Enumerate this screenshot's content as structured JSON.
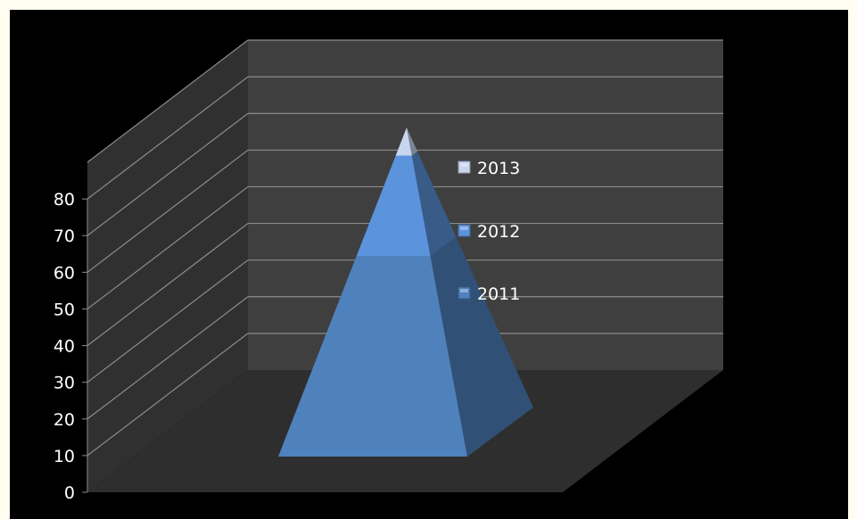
{
  "chart_data": {
    "type": "3d-stacked-pyramid",
    "categories": [
      ""
    ],
    "series": [
      {
        "name": "2011",
        "values": [
          50
        ],
        "color": "#4f81bd"
      },
      {
        "name": "2012",
        "values": [
          25
        ],
        "color": "#5b93dc"
      },
      {
        "name": "2013",
        "values": [
          7
        ],
        "color": "#c7d5ef"
      }
    ],
    "y_ticks": [
      "0",
      "10",
      "20",
      "30",
      "40",
      "50",
      "60",
      "70",
      "80"
    ],
    "ylim": [
      0,
      90
    ],
    "grid": true,
    "legend_position": "inside-right",
    "colors": {
      "background": "#000000",
      "wall": "#3f3f3f",
      "floor": "#2e2e2e",
      "side_wall": "#303030",
      "gridline": "#8c8c8c",
      "text": "#ffffff"
    }
  }
}
